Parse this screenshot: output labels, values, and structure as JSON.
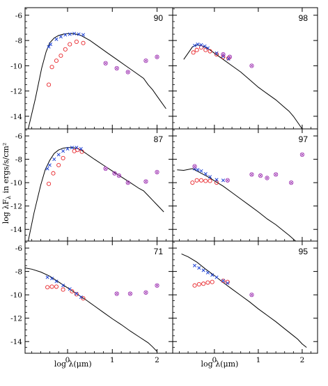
{
  "chart_data": {
    "type": "scatter",
    "layout": "3x2 grid of SED panels sharing x and y axes",
    "xlabel": "log λ(μm)",
    "ylabel": "log λF",
    "ylabel_sub": "λ",
    "ylabel_units": " in ergs/s/cm²",
    "xlim": [
      -0.95,
      2.35
    ],
    "ylim": [
      -15,
      -5.4
    ],
    "x_ticks": [
      {
        "v": 0,
        "label": "0"
      },
      {
        "v": 1,
        "label": "1"
      },
      {
        "v": 2,
        "label": "2"
      }
    ],
    "y_ticks": [
      {
        "v": -6,
        "label": "-6"
      },
      {
        "v": -8,
        "label": "-8"
      },
      {
        "v": -10,
        "label": "-10"
      },
      {
        "v": -12,
        "label": "-12"
      },
      {
        "v": -14,
        "label": "-14"
      }
    ],
    "marker_legend": {
      "model": "black line",
      "optical_photometry": "blue crosses",
      "observed": "red open circles",
      "iras": "purple circled x"
    },
    "panels": [
      {
        "label": "90",
        "model": [
          [
            -0.88,
            -15.0
          ],
          [
            -0.72,
            -12.6
          ],
          [
            -0.58,
            -10.2
          ],
          [
            -0.48,
            -8.9
          ],
          [
            -0.4,
            -8.2
          ],
          [
            -0.3,
            -7.8
          ],
          [
            -0.2,
            -7.6
          ],
          [
            -0.1,
            -7.5
          ],
          [
            0,
            -7.45
          ],
          [
            0.1,
            -7.45
          ],
          [
            0.2,
            -7.5
          ],
          [
            0.3,
            -7.6
          ],
          [
            0.5,
            -8.0
          ],
          [
            0.7,
            -8.5
          ],
          [
            0.9,
            -9.0
          ],
          [
            1.1,
            -9.5
          ],
          [
            1.3,
            -10.0
          ],
          [
            1.5,
            -10.5
          ],
          [
            1.7,
            -11.0
          ],
          [
            1.8,
            -11.5
          ],
          [
            1.9,
            -11.9
          ],
          [
            2.0,
            -12.4
          ],
          [
            2.1,
            -12.9
          ],
          [
            2.2,
            -13.4
          ]
        ],
        "blue": [
          [
            -0.42,
            -8.5
          ],
          [
            -0.38,
            -8.3
          ],
          [
            -0.25,
            -7.9
          ],
          [
            -0.15,
            -7.7
          ],
          [
            -0.05,
            -7.55
          ],
          [
            0.05,
            -7.5
          ],
          [
            0.15,
            -7.45
          ],
          [
            0.25,
            -7.5
          ],
          [
            0.35,
            -7.55
          ]
        ],
        "red": [
          [
            -0.42,
            -11.5
          ],
          [
            -0.35,
            -10.1
          ],
          [
            -0.25,
            -9.6
          ],
          [
            -0.15,
            -9.2
          ],
          [
            -0.05,
            -8.7
          ],
          [
            0.05,
            -8.3
          ],
          [
            0.2,
            -8.1
          ],
          [
            0.35,
            -8.2
          ]
        ],
        "iras": [
          [
            0.85,
            -9.8
          ],
          [
            1.1,
            -10.2
          ],
          [
            1.35,
            -10.5
          ],
          [
            1.75,
            -9.6
          ],
          [
            2.0,
            -9.3
          ]
        ]
      },
      {
        "label": "98",
        "model": [
          [
            -0.7,
            -9.5
          ],
          [
            -0.6,
            -9.0
          ],
          [
            -0.5,
            -8.5
          ],
          [
            -0.4,
            -8.35
          ],
          [
            -0.3,
            -8.4
          ],
          [
            -0.2,
            -8.55
          ],
          [
            -0.1,
            -8.75
          ],
          [
            0,
            -9.0
          ],
          [
            0.2,
            -9.5
          ],
          [
            0.4,
            -10.0
          ],
          [
            0.6,
            -10.5
          ],
          [
            0.8,
            -11.1
          ],
          [
            1.0,
            -11.7
          ],
          [
            1.2,
            -12.2
          ],
          [
            1.4,
            -12.7
          ],
          [
            1.6,
            -13.3
          ],
          [
            1.7,
            -13.6
          ],
          [
            1.8,
            -14.0
          ],
          [
            1.9,
            -14.5
          ],
          [
            2.0,
            -15.0
          ]
        ],
        "blue": [
          [
            -0.45,
            -8.4
          ],
          [
            -0.38,
            -8.3
          ],
          [
            -0.3,
            -8.35
          ],
          [
            -0.22,
            -8.45
          ],
          [
            -0.15,
            -8.6
          ],
          [
            0.05,
            -9.0
          ],
          [
            0.2,
            -9.25
          ],
          [
            0.32,
            -9.45
          ]
        ],
        "red": [
          [
            -0.48,
            -8.95
          ],
          [
            -0.4,
            -8.75
          ],
          [
            -0.3,
            -8.55
          ],
          [
            -0.2,
            -8.75
          ],
          [
            -0.1,
            -8.85
          ],
          [
            0.05,
            -9.1
          ],
          [
            0.2,
            -9.3
          ],
          [
            0.32,
            -9.4
          ]
        ],
        "iras": [
          [
            0.2,
            -9.1
          ],
          [
            0.35,
            -9.3
          ],
          [
            0.85,
            -10.0
          ]
        ]
      },
      {
        "label": "87",
        "model": [
          [
            -0.88,
            -15.0
          ],
          [
            -0.75,
            -12.6
          ],
          [
            -0.6,
            -10.2
          ],
          [
            -0.5,
            -8.9
          ],
          [
            -0.4,
            -8.1
          ],
          [
            -0.3,
            -7.5
          ],
          [
            -0.2,
            -7.2
          ],
          [
            -0.1,
            -7.05
          ],
          [
            0,
            -7.0
          ],
          [
            0.1,
            -7.0
          ],
          [
            0.2,
            -7.05
          ],
          [
            0.3,
            -7.2
          ],
          [
            0.45,
            -7.6
          ],
          [
            0.6,
            -8.0
          ],
          [
            0.8,
            -8.5
          ],
          [
            1.0,
            -9.0
          ],
          [
            1.2,
            -9.5
          ],
          [
            1.4,
            -10.0
          ],
          [
            1.6,
            -10.5
          ],
          [
            1.7,
            -10.7
          ],
          [
            1.8,
            -11.1
          ],
          [
            1.9,
            -11.5
          ],
          [
            2.0,
            -11.9
          ],
          [
            2.15,
            -12.5
          ]
        ],
        "blue": [
          [
            -0.45,
            -8.8
          ],
          [
            -0.4,
            -8.5
          ],
          [
            -0.3,
            -8.0
          ],
          [
            -0.2,
            -7.6
          ],
          [
            -0.1,
            -7.3
          ],
          [
            0,
            -7.1
          ],
          [
            0.1,
            -7.0
          ],
          [
            0.2,
            -7.0
          ],
          [
            0.3,
            -7.1
          ]
        ],
        "red": [
          [
            -0.42,
            -10.1
          ],
          [
            -0.32,
            -9.2
          ],
          [
            -0.2,
            -8.5
          ],
          [
            -0.1,
            -7.9
          ],
          [
            0.15,
            -7.3
          ],
          [
            0.22,
            -7.2
          ],
          [
            0.32,
            -7.35
          ]
        ],
        "iras": [
          [
            0.85,
            -8.8
          ],
          [
            1.05,
            -9.2
          ],
          [
            1.15,
            -9.4
          ],
          [
            1.35,
            -10.0
          ],
          [
            1.75,
            -9.9
          ],
          [
            2.0,
            -9.1
          ]
        ]
      },
      {
        "label": "97",
        "model": [
          [
            -0.85,
            -8.9
          ],
          [
            -0.7,
            -8.95
          ],
          [
            -0.5,
            -8.8
          ],
          [
            -0.4,
            -9.0
          ],
          [
            -0.3,
            -9.2
          ],
          [
            -0.1,
            -9.6
          ],
          [
            0,
            -9.85
          ],
          [
            0.2,
            -10.3
          ],
          [
            0.4,
            -10.85
          ],
          [
            0.6,
            -11.4
          ],
          [
            0.8,
            -11.95
          ],
          [
            1.0,
            -12.5
          ],
          [
            1.2,
            -13.1
          ],
          [
            1.4,
            -13.6
          ],
          [
            1.6,
            -14.2
          ],
          [
            1.7,
            -14.5
          ],
          [
            1.85,
            -15.0
          ]
        ],
        "blue": [
          [
            -0.45,
            -8.8
          ],
          [
            -0.38,
            -8.9
          ],
          [
            -0.3,
            -9.0
          ],
          [
            -0.2,
            -9.25
          ],
          [
            -0.1,
            -9.5
          ],
          [
            0.05,
            -9.75
          ],
          [
            0.2,
            -9.8
          ]
        ],
        "red": [
          [
            -0.5,
            -10.0
          ],
          [
            -0.4,
            -9.8
          ],
          [
            -0.3,
            -9.8
          ],
          [
            -0.2,
            -9.85
          ],
          [
            -0.1,
            -9.85
          ],
          [
            0.05,
            -10.0
          ]
        ],
        "iras": [
          [
            -0.45,
            -8.6
          ],
          [
            0.3,
            -9.8
          ],
          [
            0.85,
            -9.3
          ],
          [
            1.05,
            -9.4
          ],
          [
            1.2,
            -9.6
          ],
          [
            1.4,
            -9.3
          ],
          [
            1.75,
            -10.0
          ],
          [
            2.0,
            -7.6
          ]
        ]
      },
      {
        "label": "71",
        "model": [
          [
            -0.95,
            -7.7
          ],
          [
            -0.8,
            -7.8
          ],
          [
            -0.6,
            -8.05
          ],
          [
            -0.4,
            -8.4
          ],
          [
            -0.2,
            -8.9
          ],
          [
            0,
            -9.4
          ],
          [
            0.2,
            -9.9
          ],
          [
            0.4,
            -10.4
          ],
          [
            0.6,
            -10.95
          ],
          [
            0.8,
            -11.5
          ],
          [
            1.0,
            -12.05
          ],
          [
            1.2,
            -12.55
          ],
          [
            1.4,
            -13.1
          ],
          [
            1.6,
            -13.6
          ],
          [
            1.8,
            -14.1
          ],
          [
            1.9,
            -14.45
          ],
          [
            2.0,
            -14.85
          ]
        ],
        "blue": [
          [
            -0.45,
            -8.5
          ],
          [
            -0.35,
            -8.6
          ],
          [
            -0.25,
            -8.85
          ],
          [
            -0.1,
            -9.2
          ],
          [
            0.05,
            -9.5
          ],
          [
            0.2,
            -9.9
          ],
          [
            0.3,
            -10.2
          ]
        ],
        "red": [
          [
            -0.45,
            -9.35
          ],
          [
            -0.35,
            -9.3
          ],
          [
            -0.25,
            -9.3
          ],
          [
            -0.1,
            -9.55
          ],
          [
            0.1,
            -9.7
          ],
          [
            0.2,
            -9.95
          ],
          [
            0.35,
            -10.3
          ]
        ],
        "iras": [
          [
            1.1,
            -9.9
          ],
          [
            1.4,
            -9.9
          ],
          [
            1.75,
            -9.8
          ],
          [
            2.0,
            -9.2
          ]
        ]
      },
      {
        "label": "95",
        "model": [
          [
            -0.75,
            -6.5
          ],
          [
            -0.6,
            -6.75
          ],
          [
            -0.4,
            -7.2
          ],
          [
            -0.2,
            -7.8
          ],
          [
            0,
            -8.35
          ],
          [
            0.2,
            -8.95
          ],
          [
            0.4,
            -9.5
          ],
          [
            0.6,
            -10.05
          ],
          [
            0.8,
            -10.6
          ],
          [
            1.0,
            -11.2
          ],
          [
            1.2,
            -11.75
          ],
          [
            1.4,
            -12.3
          ],
          [
            1.6,
            -12.9
          ],
          [
            1.8,
            -13.5
          ],
          [
            1.9,
            -13.8
          ],
          [
            2.0,
            -14.2
          ],
          [
            2.1,
            -14.5
          ]
        ],
        "blue": [
          [
            -0.45,
            -7.5
          ],
          [
            -0.35,
            -7.7
          ],
          [
            -0.25,
            -7.9
          ],
          [
            -0.15,
            -8.1
          ],
          [
            -0.05,
            -8.3
          ],
          [
            0.05,
            -8.5
          ],
          [
            0.2,
            -8.8
          ],
          [
            0.3,
            -9.0
          ]
        ],
        "red": [
          [
            -0.45,
            -9.2
          ],
          [
            -0.35,
            -9.1
          ],
          [
            -0.25,
            -9.05
          ],
          [
            -0.15,
            -8.95
          ],
          [
            -0.05,
            -8.9
          ],
          [
            0.2,
            -8.8
          ],
          [
            0.3,
            -8.9
          ]
        ],
        "iras": [
          [
            0.85,
            -10.0
          ]
        ]
      }
    ]
  }
}
